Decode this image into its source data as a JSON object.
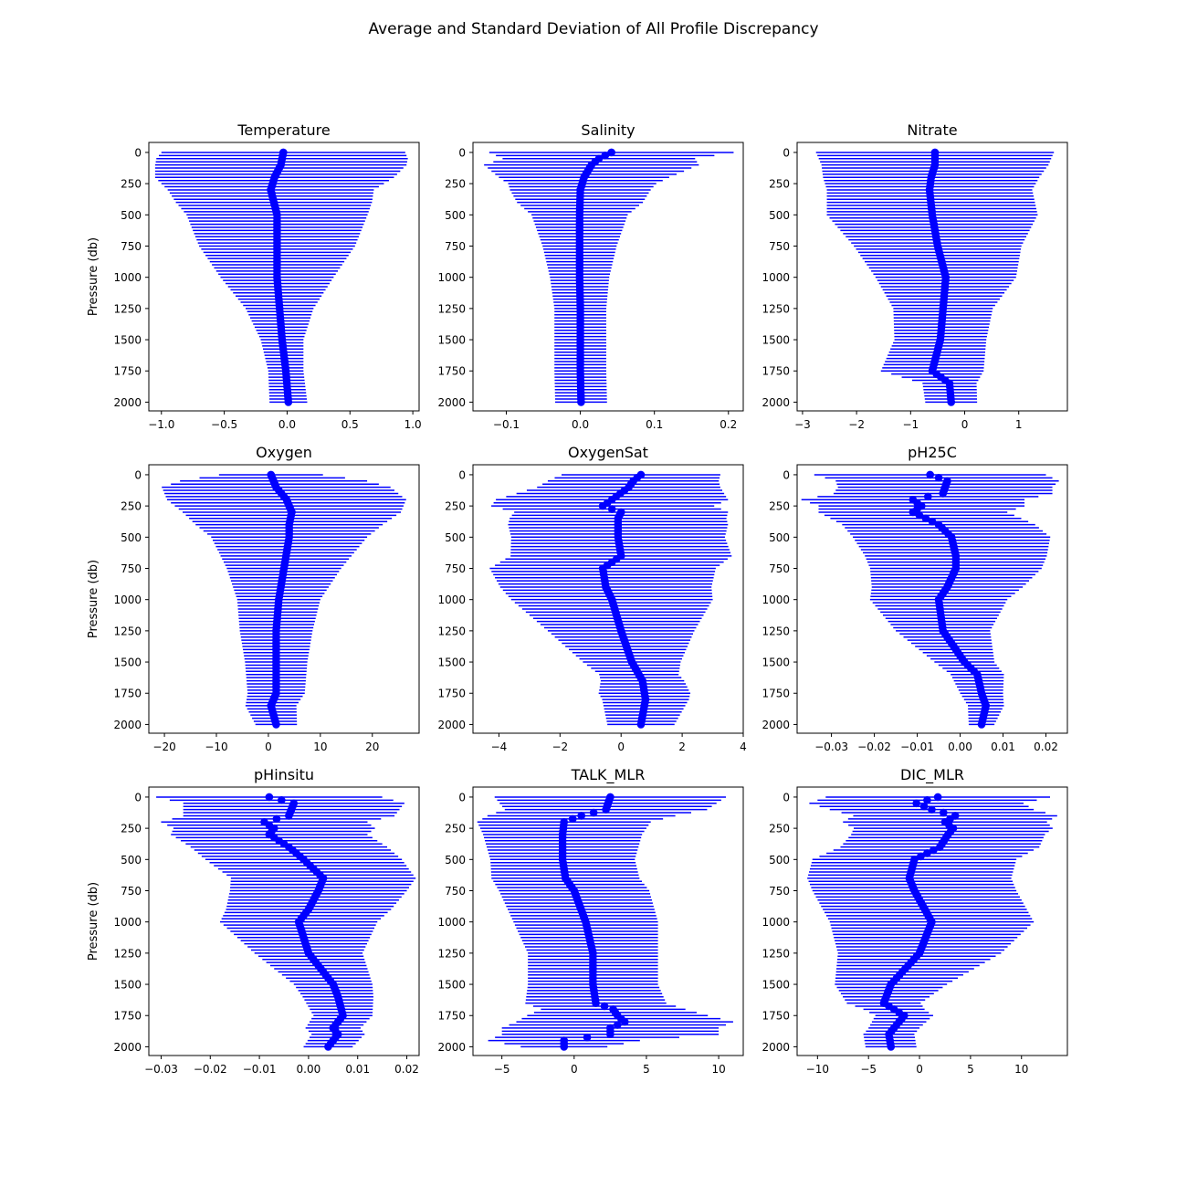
{
  "figure": {
    "title": "Average and Standard Deviation of All Profile Discrepancy"
  },
  "style": {
    "series_color": "#0000ff",
    "axis_color": "#000000",
    "background": "#ffffff"
  },
  "chart_data": [
    {
      "type": "scatter",
      "title": "Temperature",
      "ylabel": "Pressure (db)",
      "xlabel": "",
      "xlim": [
        -1.1,
        1.05
      ],
      "ylim": [
        2070,
        -80
      ],
      "xticks": [
        -1.0,
        -0.5,
        0.0,
        0.5,
        1.0
      ],
      "xtick_labels": [
        "−1.0",
        "−0.5",
        "0.0",
        "0.5",
        "1.0"
      ],
      "yticks": [
        0,
        250,
        500,
        750,
        1000,
        1250,
        1500,
        1750,
        2000
      ],
      "ytick_labels": [
        "0",
        "250",
        "500",
        "750",
        "1000",
        "1250",
        "1500",
        "1750",
        "2000"
      ],
      "errorbar": true,
      "grid": false,
      "mean_profile": {
        "pressure": [
          0,
          100,
          200,
          300,
          500,
          750,
          1000,
          1250,
          1500,
          1750,
          2000
        ],
        "value": [
          -0.03,
          -0.05,
          -0.1,
          -0.13,
          -0.08,
          -0.08,
          -0.08,
          -0.06,
          -0.04,
          -0.01,
          0.01
        ]
      },
      "std_profile": {
        "pressure": [
          0,
          50,
          100,
          200,
          300,
          400,
          500,
          750,
          1000,
          1250,
          1500,
          1750,
          2000
        ],
        "value": [
          0.97,
          1.0,
          1.0,
          0.95,
          0.82,
          0.78,
          0.72,
          0.62,
          0.45,
          0.27,
          0.17,
          0.14,
          0.15
        ]
      }
    },
    {
      "type": "scatter",
      "title": "Salinity",
      "ylabel": "",
      "xlabel": "",
      "xlim": [
        -0.145,
        0.22
      ],
      "ylim": [
        2070,
        -80
      ],
      "xticks": [
        -0.1,
        0.0,
        0.1,
        0.2
      ],
      "xtick_labels": [
        "−0.1",
        "0.0",
        "0.1",
        "0.2"
      ],
      "yticks": [
        0,
        250,
        500,
        750,
        1000,
        1250,
        1500,
        1750,
        2000
      ],
      "ytick_labels": [
        "0",
        "250",
        "500",
        "750",
        "1000",
        "1250",
        "1500",
        "1750",
        "2000"
      ],
      "errorbar": true,
      "grid": false,
      "mean_profile": {
        "pressure": [
          0,
          50,
          100,
          200,
          300,
          500,
          750,
          1000,
          1250,
          1500,
          1750,
          2000
        ],
        "value": [
          0.042,
          0.025,
          0.015,
          0.005,
          0.0,
          -0.001,
          -0.001,
          -0.001,
          0.0,
          0.0,
          0.0,
          0.001
        ]
      },
      "std_profile": {
        "pressure": [
          0,
          50,
          100,
          150,
          250,
          400,
          500,
          750,
          1000,
          1250,
          1500,
          1750,
          2000
        ],
        "value": [
          0.165,
          0.13,
          0.145,
          0.13,
          0.1,
          0.085,
          0.065,
          0.05,
          0.04,
          0.035,
          0.035,
          0.035,
          0.035
        ]
      }
    },
    {
      "type": "scatter",
      "title": "Nitrate",
      "ylabel": "",
      "xlabel": "",
      "xlim": [
        -3.1,
        1.9
      ],
      "ylim": [
        2070,
        -80
      ],
      "xticks": [
        -3,
        -2,
        -1,
        0,
        1
      ],
      "xtick_labels": [
        "−3",
        "−2",
        "−1",
        "0",
        "1"
      ],
      "yticks": [
        0,
        250,
        500,
        750,
        1000,
        1250,
        1500,
        1750,
        2000
      ],
      "ytick_labels": [
        "0",
        "250",
        "500",
        "750",
        "1000",
        "1250",
        "1500",
        "1750",
        "2000"
      ],
      "errorbar": true,
      "grid": false,
      "mean_profile": {
        "pressure": [
          0,
          100,
          200,
          300,
          500,
          750,
          1000,
          1250,
          1500,
          1750,
          1850,
          2000
        ],
        "value": [
          -0.55,
          -0.55,
          -0.62,
          -0.65,
          -0.6,
          -0.5,
          -0.35,
          -0.4,
          -0.45,
          -0.6,
          -0.28,
          -0.25
        ]
      },
      "std_profile": {
        "pressure": [
          0,
          100,
          200,
          300,
          500,
          750,
          1000,
          1250,
          1500,
          1750,
          1850,
          2000
        ],
        "value": [
          2.2,
          2.1,
          2.0,
          1.9,
          1.95,
          1.55,
          1.3,
          0.92,
          0.85,
          0.95,
          0.5,
          0.48
        ]
      }
    },
    {
      "type": "scatter",
      "title": "Oxygen",
      "ylabel": "Pressure (db)",
      "xlabel": "",
      "xlim": [
        -23,
        29
      ],
      "ylim": [
        2070,
        -80
      ],
      "xticks": [
        -20,
        -10,
        0,
        10,
        20
      ],
      "xtick_labels": [
        "−20",
        "−10",
        "0",
        "10",
        "20"
      ],
      "yticks": [
        0,
        250,
        500,
        750,
        1000,
        1250,
        1500,
        1750,
        2000
      ],
      "ytick_labels": [
        "0",
        "250",
        "500",
        "750",
        "1000",
        "1250",
        "1500",
        "1750",
        "2000"
      ],
      "errorbar": true,
      "grid": false,
      "mean_profile": {
        "pressure": [
          0,
          100,
          200,
          300,
          400,
          500,
          750,
          1000,
          1250,
          1500,
          1750,
          1850,
          2000
        ],
        "value": [
          0.5,
          1.5,
          3.5,
          4.5,
          4.0,
          4.0,
          3.0,
          2.0,
          1.5,
          1.5,
          1.5,
          0.5,
          1.5
        ]
      },
      "std_profile": {
        "pressure": [
          0,
          50,
          100,
          200,
          300,
          400,
          500,
          750,
          1000,
          1250,
          1500,
          1750,
          2000
        ],
        "value": [
          10,
          18,
          22,
          23,
          21,
          18,
          15,
          11,
          8,
          7,
          6,
          5.5,
          4
        ]
      }
    },
    {
      "type": "scatter",
      "title": "OxygenSat",
      "ylabel": "",
      "xlabel": "",
      "xlim": [
        -4.85,
        4.0
      ],
      "ylim": [
        2070,
        -80
      ],
      "xticks": [
        -4,
        -2,
        0,
        2,
        4
      ],
      "xtick_labels": [
        "−4",
        "−2",
        "0",
        "2",
        "4"
      ],
      "yticks": [
        0,
        250,
        500,
        750,
        1000,
        1250,
        1500,
        1750,
        2000
      ],
      "ytick_labels": [
        "0",
        "250",
        "500",
        "750",
        "1000",
        "1250",
        "1500",
        "1750",
        "2000"
      ],
      "errorbar": true,
      "grid": false,
      "mean_profile": {
        "pressure": [
          0,
          50,
          100,
          200,
          250,
          300,
          350,
          500,
          650,
          750,
          900,
          1000,
          1250,
          1500,
          1650,
          1800,
          2000
        ],
        "value": [
          0.65,
          0.4,
          0.25,
          -0.3,
          -0.6,
          0.0,
          -0.1,
          -0.1,
          0.0,
          -0.6,
          -0.5,
          -0.3,
          0.0,
          0.35,
          0.7,
          0.8,
          0.65
        ]
      },
      "std_profile": {
        "pressure": [
          0,
          100,
          200,
          300,
          400,
          500,
          750,
          1000,
          1250,
          1500,
          1600,
          1750,
          2000
        ],
        "value": [
          2.6,
          3.0,
          3.8,
          3.5,
          3.6,
          3.5,
          3.7,
          3.3,
          2.4,
          1.6,
          1.3,
          1.5,
          1.1
        ]
      }
    },
    {
      "type": "scatter",
      "title": "pH25C",
      "ylabel": "",
      "xlabel": "",
      "xlim": [
        -0.038,
        0.025
      ],
      "ylim": [
        2070,
        -80
      ],
      "xticks": [
        -0.03,
        -0.02,
        -0.01,
        0.0,
        0.01,
        0.02
      ],
      "xtick_labels": [
        "−0.03",
        "−0.02",
        "−0.01",
        "0.00",
        "0.01",
        "0.02"
      ],
      "yticks": [
        0,
        250,
        500,
        750,
        1000,
        1250,
        1500,
        1750,
        2000
      ],
      "ytick_labels": [
        "0",
        "250",
        "500",
        "750",
        "1000",
        "1250",
        "1500",
        "1750",
        "2000"
      ],
      "errorbar": true,
      "grid": false,
      "mean_profile": {
        "pressure": [
          0,
          50,
          150,
          200,
          250,
          300,
          400,
          500,
          650,
          750,
          900,
          1000,
          1250,
          1500,
          1600,
          1750,
          1850,
          2000
        ],
        "value": [
          -0.007,
          -0.003,
          -0.004,
          -0.011,
          -0.009,
          -0.011,
          -0.005,
          -0.002,
          -0.001,
          -0.001,
          -0.003,
          -0.005,
          -0.004,
          0.001,
          0.004,
          0.005,
          0.006,
          0.005
        ]
      },
      "std_profile": {
        "pressure": [
          0,
          100,
          200,
          300,
          500,
          750,
          1000,
          1250,
          1500,
          1750,
          2000
        ],
        "value": [
          0.027,
          0.025,
          0.026,
          0.022,
          0.023,
          0.02,
          0.016,
          0.011,
          0.007,
          0.005,
          0.003
        ]
      }
    },
    {
      "type": "scatter",
      "title": "pHinsitu",
      "ylabel": "Pressure (db)",
      "xlabel": "",
      "xlim": [
        -0.0325,
        0.0225
      ],
      "ylim": [
        2070,
        -80
      ],
      "xticks": [
        -0.03,
        -0.02,
        -0.01,
        0.0,
        0.01,
        0.02
      ],
      "xtick_labels": [
        "−0.03",
        "−0.02",
        "−0.01",
        "0.00",
        "0.01",
        "0.02"
      ],
      "yticks": [
        0,
        250,
        500,
        750,
        1000,
        1250,
        1500,
        1750,
        2000
      ],
      "ytick_labels": [
        "0",
        "250",
        "500",
        "750",
        "1000",
        "1250",
        "1500",
        "1750",
        "2000"
      ],
      "errorbar": true,
      "grid": false,
      "mean_profile": {
        "pressure": [
          0,
          50,
          150,
          200,
          250,
          300,
          400,
          500,
          650,
          750,
          900,
          1000,
          1250,
          1500,
          1600,
          1750,
          1850,
          1900,
          2000
        ],
        "value": [
          -0.008,
          -0.003,
          -0.004,
          -0.009,
          -0.007,
          -0.008,
          -0.004,
          -0.001,
          0.003,
          0.002,
          0.0,
          -0.002,
          0.0,
          0.005,
          0.006,
          0.007,
          0.005,
          0.006,
          0.004
        ]
      },
      "std_profile": {
        "pressure": [
          0,
          100,
          200,
          300,
          500,
          750,
          1000,
          1250,
          1500,
          1750,
          2000
        ],
        "value": [
          0.023,
          0.022,
          0.021,
          0.02,
          0.02,
          0.018,
          0.016,
          0.011,
          0.008,
          0.006,
          0.005
        ]
      }
    },
    {
      "type": "scatter",
      "title": "TALK_MLR",
      "ylabel": "",
      "xlabel": "",
      "xlim": [
        -7.0,
        11.7
      ],
      "ylim": [
        2070,
        -80
      ],
      "xticks": [
        -5,
        0,
        5,
        10
      ],
      "xtick_labels": [
        "−5",
        "0",
        "5",
        "10"
      ],
      "yticks": [
        0,
        250,
        500,
        750,
        1000,
        1250,
        1500,
        1750,
        2000
      ],
      "ytick_labels": [
        "0",
        "250",
        "500",
        "750",
        "1000",
        "1250",
        "1500",
        "1750",
        "2000"
      ],
      "errorbar": true,
      "grid": false,
      "mean_profile": {
        "pressure": [
          0,
          100,
          150,
          200,
          300,
          500,
          650,
          750,
          1000,
          1250,
          1500,
          1650,
          1700,
          1750,
          1800,
          1850,
          1900,
          1950,
          2000
        ],
        "value": [
          2.5,
          2.2,
          0.5,
          -0.7,
          -0.8,
          -0.8,
          -0.6,
          0.0,
          0.8,
          1.3,
          1.3,
          1.5,
          2.7,
          3.0,
          3.5,
          2.5,
          2.5,
          -0.7,
          -0.7
        ]
      },
      "std_profile": {
        "pressure": [
          0,
          100,
          200,
          300,
          500,
          750,
          1000,
          1250,
          1500,
          1700,
          1800,
          1900,
          2000
        ],
        "value": [
          8.0,
          7.0,
          6.0,
          5.5,
          5.0,
          5.2,
          5.0,
          4.5,
          4.5,
          5.0,
          7.5,
          7.5,
          3.0
        ]
      }
    },
    {
      "type": "scatter",
      "title": "DIC_MLR",
      "ylabel": "",
      "xlabel": "",
      "xlim": [
        -12.0,
        14.5
      ],
      "ylim": [
        2070,
        -80
      ],
      "xticks": [
        -10,
        -5,
        0,
        5,
        10
      ],
      "xtick_labels": [
        "−10",
        "−5",
        "0",
        "5",
        "10"
      ],
      "yticks": [
        0,
        250,
        500,
        750,
        1000,
        1250,
        1500,
        1750,
        2000
      ],
      "ytick_labels": [
        "0",
        "250",
        "500",
        "750",
        "1000",
        "1250",
        "1500",
        "1750",
        "2000"
      ],
      "errorbar": true,
      "grid": false,
      "mean_profile": {
        "pressure": [
          0,
          50,
          100,
          150,
          200,
          250,
          300,
          400,
          500,
          650,
          750,
          1000,
          1250,
          1500,
          1650,
          1750,
          1900,
          2000
        ],
        "value": [
          1.8,
          -0.3,
          1.2,
          3.5,
          2.5,
          3.3,
          2.8,
          2.0,
          -0.5,
          -1.0,
          -0.5,
          1.2,
          0.0,
          -2.8,
          -3.5,
          -1.5,
          -3.0,
          -2.8
        ]
      },
      "std_profile": {
        "pressure": [
          0,
          100,
          200,
          300,
          500,
          750,
          1000,
          1250,
          1500,
          1700,
          1850,
          2000
        ],
        "value": [
          11,
          10,
          10,
          9.5,
          10,
          10,
          10,
          8,
          5.5,
          3.0,
          2.5,
          2.5
        ]
      }
    }
  ]
}
